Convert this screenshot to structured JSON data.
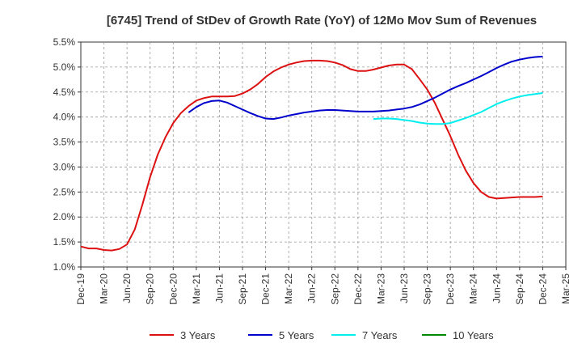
{
  "chart_data": {
    "type": "line",
    "title": "[6745]  Trend of StDev of Growth Rate (YoY) of 12Mo Mov Sum of Revenues",
    "xlabel": "",
    "ylabel": "",
    "ylim": [
      1.0,
      5.5
    ],
    "y_ticks": [
      "1.0%",
      "1.5%",
      "2.0%",
      "2.5%",
      "3.0%",
      "3.5%",
      "4.0%",
      "4.5%",
      "5.0%",
      "5.5%"
    ],
    "y_tick_values": [
      1.0,
      1.5,
      2.0,
      2.5,
      3.0,
      3.5,
      4.0,
      4.5,
      5.0,
      5.5
    ],
    "x_ticks": [
      "Dec-19",
      "Mar-20",
      "Jun-20",
      "Sep-20",
      "Dec-20",
      "Mar-21",
      "Jun-21",
      "Sep-21",
      "Dec-21",
      "Mar-22",
      "Jun-22",
      "Sep-22",
      "Dec-22",
      "Mar-23",
      "Jun-23",
      "Sep-23",
      "Dec-23",
      "Mar-24",
      "Jun-24",
      "Sep-24",
      "Dec-24",
      "Mar-25"
    ],
    "x_unit": "months since Dec-19",
    "x_range": [
      0,
      63
    ],
    "grid": true,
    "legend_position": "bottom",
    "series": [
      {
        "name": "3 Years",
        "color": "#dd1111",
        "x": [
          0,
          1,
          2,
          3,
          4,
          5,
          6,
          7,
          8,
          9,
          10,
          11,
          12,
          13,
          14,
          15,
          16,
          17,
          18,
          19,
          20,
          21,
          22,
          23,
          24,
          25,
          26,
          27,
          28,
          29,
          30,
          31,
          32,
          33,
          34,
          35,
          36,
          37,
          38,
          39,
          40,
          41,
          42,
          43,
          44,
          45,
          46,
          47,
          48,
          49,
          50,
          51,
          52,
          53,
          54,
          55,
          56,
          57,
          58,
          59,
          60
        ],
        "values": [
          1.41,
          1.37,
          1.37,
          1.34,
          1.33,
          1.36,
          1.45,
          1.75,
          2.25,
          2.8,
          3.25,
          3.6,
          3.88,
          4.08,
          4.22,
          4.33,
          4.38,
          4.41,
          4.41,
          4.41,
          4.42,
          4.47,
          4.55,
          4.66,
          4.8,
          4.91,
          4.99,
          5.05,
          5.09,
          5.12,
          5.13,
          5.13,
          5.12,
          5.09,
          5.04,
          4.96,
          4.92,
          4.92,
          4.95,
          4.99,
          5.03,
          5.05,
          5.05,
          4.96,
          4.76,
          4.55,
          4.28,
          3.95,
          3.62,
          3.25,
          2.93,
          2.68,
          2.5,
          2.4,
          2.37,
          2.38,
          2.39,
          2.4,
          2.4,
          2.4,
          2.41
        ]
      },
      {
        "name": "5 Years",
        "color": "#0000cc",
        "x": [
          14,
          15,
          16,
          17,
          18,
          19,
          20,
          21,
          22,
          23,
          24,
          25,
          26,
          27,
          28,
          29,
          30,
          31,
          32,
          33,
          34,
          35,
          36,
          37,
          38,
          39,
          40,
          41,
          42,
          43,
          44,
          45,
          46,
          47,
          48,
          49,
          50,
          51,
          52,
          53,
          54,
          55,
          56,
          57,
          58,
          59,
          60
        ],
        "values": [
          4.09,
          4.2,
          4.28,
          4.32,
          4.33,
          4.29,
          4.22,
          4.15,
          4.08,
          4.02,
          3.97,
          3.96,
          3.99,
          4.03,
          4.06,
          4.09,
          4.11,
          4.13,
          4.14,
          4.14,
          4.13,
          4.12,
          4.11,
          4.11,
          4.11,
          4.12,
          4.13,
          4.15,
          4.17,
          4.2,
          4.25,
          4.32,
          4.39,
          4.47,
          4.55,
          4.62,
          4.68,
          4.75,
          4.82,
          4.9,
          4.98,
          5.05,
          5.11,
          5.15,
          5.18,
          5.2,
          5.21
        ]
      },
      {
        "name": "7 Years",
        "color": "#00eeee",
        "x": [
          38,
          39,
          40,
          41,
          42,
          43,
          44,
          45,
          46,
          47,
          48,
          49,
          50,
          51,
          52,
          53,
          54,
          55,
          56,
          57,
          58,
          59,
          60
        ],
        "values": [
          3.96,
          3.97,
          3.97,
          3.96,
          3.94,
          3.92,
          3.89,
          3.87,
          3.86,
          3.86,
          3.88,
          3.93,
          3.98,
          4.04,
          4.1,
          4.18,
          4.26,
          4.32,
          4.37,
          4.41,
          4.44,
          4.46,
          4.48
        ]
      },
      {
        "name": "10 Years",
        "color": "#008800",
        "x": [],
        "values": []
      }
    ]
  }
}
